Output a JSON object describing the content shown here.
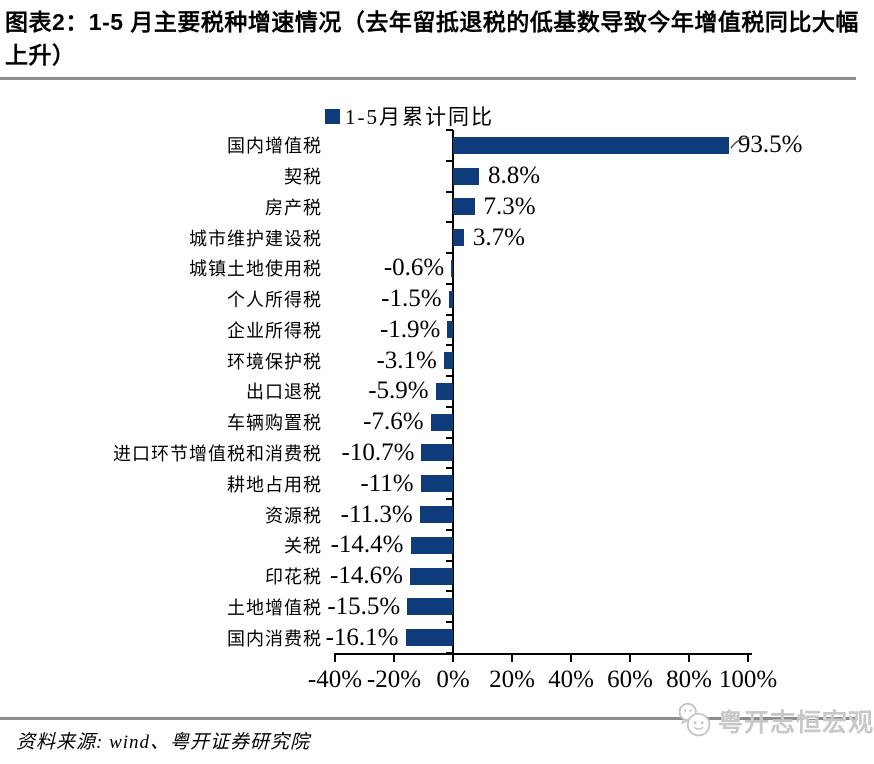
{
  "header": {
    "title": "图表2：1-5 月主要税种增速情况（去年留抵退税的低基数导致今年增值税同比大幅上升）"
  },
  "chart_data": {
    "type": "bar",
    "orientation": "horizontal",
    "legend": "1-5月累计同比",
    "legend_position": "top",
    "categories": [
      "国内增值税",
      "契税",
      "房产税",
      "城市维护建设税",
      "城镇土地使用税",
      "个人所得税",
      "企业所得税",
      "环境保护税",
      "出口退税",
      "车辆购置税",
      "进口环节增值税和消费税",
      "耕地占用税",
      "资源税",
      "关税",
      "印花税",
      "土地增值税",
      "国内消费税"
    ],
    "values": [
      93.5,
      8.8,
      7.3,
      3.7,
      -0.6,
      -1.5,
      -1.9,
      -3.1,
      -5.9,
      -7.6,
      -10.7,
      -11,
      -11.3,
      -14.4,
      -14.6,
      -15.5,
      -16.1
    ],
    "value_labels": [
      "93.5%",
      "8.8%",
      "7.3%",
      "3.7%",
      "-0.6%",
      "-1.5%",
      "-1.9%",
      "-3.1%",
      "-5.9%",
      "-7.6%",
      "-10.7%",
      "-11%",
      "-11.3%",
      "-14.4%",
      "-14.6%",
      "-15.5%",
      "-16.1%"
    ],
    "x_tick_labels": [
      "-40%",
      "-20%",
      "0%",
      "20%",
      "40%",
      "60%",
      "80%",
      "100%"
    ],
    "x_tick_values": [
      -40,
      -20,
      0,
      20,
      40,
      60,
      80,
      100
    ],
    "xlim": [
      -40,
      100
    ],
    "unit": "%",
    "grid": false
  },
  "footer": {
    "source": "资料来源: wind、粤开证券研究院"
  },
  "watermark": {
    "text": "粤开志恒宏观"
  },
  "colors": {
    "bar": "#0e3c7b",
    "divider": "#8c8c8c",
    "axis": "#000000",
    "leader_line": "#595959",
    "watermark": "#c8c8c8"
  }
}
